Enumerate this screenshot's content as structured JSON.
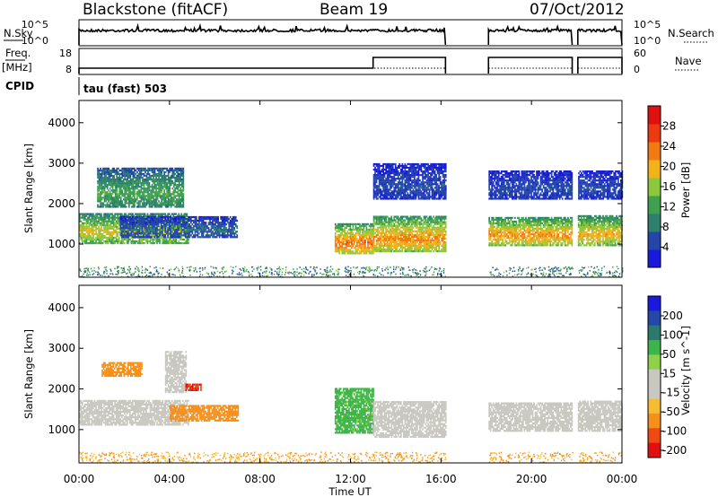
{
  "header": {
    "title": "Blackstone (fitACF)",
    "beam": "Beam 19",
    "date": "07/Oct/2012"
  },
  "params": {
    "nsky_label": "N.Sky",
    "nsearch_label": "N.Search",
    "freq_label": "Freq.",
    "freq_unit": "[MHz]",
    "nave_label": "Nave",
    "cpid_label": "CPID",
    "cpid_value": "tau (fast) 503",
    "noise_ticks": [
      "10^5",
      "10^0"
    ],
    "freq_ticks": [
      "18",
      "8"
    ],
    "nave_ticks": [
      "60",
      "0"
    ]
  },
  "colors": {
    "power_scale": [
      "#1a1adc",
      "#2346a8",
      "#2e7f6e",
      "#3fa050",
      "#8cc83c",
      "#f2b21a",
      "#f27a12",
      "#ee3a10",
      "#e01010"
    ],
    "velocity_scale": [
      "#e01010",
      "#f04a14",
      "#f5901c",
      "#f7bb32",
      "#c8c8c0",
      "#c8c8c0",
      "#8fd24a",
      "#3fb44a",
      "#2c7a6c",
      "#2348a8",
      "#1a1adc"
    ]
  },
  "chart_data": [
    {
      "type": "heatmap",
      "parameter": "Power",
      "ylabel": "Slant Range [km]",
      "ylim": [
        180,
        4550
      ],
      "yticks": [
        1000,
        2000,
        3000,
        4000
      ],
      "xlim_hours": [
        0,
        24
      ],
      "colorbar_label": "Power [dB]",
      "colorbar_range": [
        0,
        32
      ],
      "colorbar_ticks": [
        4,
        8,
        12,
        16,
        20,
        24,
        28
      ],
      "data_gaps_hours": [
        [
          16.2,
          18.1
        ],
        [
          21.8,
          22.05
        ]
      ],
      "echo_bands": [
        {
          "start_h": 0.0,
          "end_h": 4.8,
          "range_km": [
            1000,
            1750
          ],
          "level_db": 20
        },
        {
          "start_h": 0.8,
          "end_h": 4.6,
          "range_km": [
            1900,
            2850
          ],
          "level_db": 14
        },
        {
          "start_h": 1.8,
          "end_h": 7.0,
          "range_km": [
            1150,
            1650
          ],
          "level_db": 8
        },
        {
          "start_h": 11.3,
          "end_h": 13.0,
          "range_km": [
            750,
            1500
          ],
          "level_db": 26
        },
        {
          "start_h": 13.0,
          "end_h": 16.2,
          "range_km": [
            800,
            1700
          ],
          "level_db": 24
        },
        {
          "start_h": 18.1,
          "end_h": 21.8,
          "range_km": [
            950,
            1650
          ],
          "level_db": 24
        },
        {
          "start_h": 22.05,
          "end_h": 24.0,
          "range_km": [
            950,
            1700
          ],
          "level_db": 22
        },
        {
          "start_h": 13.0,
          "end_h": 16.2,
          "range_km": [
            2100,
            3000
          ],
          "level_db": 6
        },
        {
          "start_h": 18.1,
          "end_h": 24.0,
          "range_km": [
            2100,
            2800
          ],
          "level_db": 6
        }
      ]
    },
    {
      "type": "heatmap",
      "parameter": "Velocity",
      "ylabel": "Slant Range [km]",
      "xlabel": "Time UT",
      "ylim": [
        180,
        4550
      ],
      "yticks": [
        1000,
        2000,
        3000,
        4000
      ],
      "xlim_hours": [
        0,
        24
      ],
      "xticks": [
        "00:00",
        "04:00",
        "08:00",
        "12:00",
        "16:00",
        "20:00",
        "00:00"
      ],
      "colorbar_label": "Velocity [m s^-1]",
      "colorbar_ticks": [
        "200",
        "100",
        "50",
        "15",
        "-15",
        "-50",
        "-100",
        "-200"
      ],
      "data_gaps_hours": [
        [
          16.2,
          18.1
        ],
        [
          21.8,
          22.05
        ]
      ],
      "echo_bands": [
        {
          "start_h": 0.0,
          "end_h": 4.8,
          "range_km": [
            1100,
            1700
          ],
          "velocity": 0
        },
        {
          "start_h": 1.0,
          "end_h": 2.8,
          "range_km": [
            2300,
            2650
          ],
          "velocity": -60
        },
        {
          "start_h": 3.8,
          "end_h": 4.7,
          "range_km": [
            1900,
            2900
          ],
          "velocity": 0
        },
        {
          "start_h": 4.0,
          "end_h": 7.0,
          "range_km": [
            1200,
            1600
          ],
          "velocity": -60
        },
        {
          "start_h": 4.7,
          "end_h": 5.4,
          "range_km": [
            1950,
            2100
          ],
          "velocity": -150
        },
        {
          "start_h": 11.3,
          "end_h": 13.0,
          "range_km": [
            900,
            2000
          ],
          "velocity": 40
        },
        {
          "start_h": 13.0,
          "end_h": 16.2,
          "range_km": [
            800,
            1700
          ],
          "velocity": 0
        },
        {
          "start_h": 18.1,
          "end_h": 21.8,
          "range_km": [
            950,
            1650
          ],
          "velocity": 0
        },
        {
          "start_h": 22.05,
          "end_h": 24.0,
          "range_km": [
            950,
            1700
          ],
          "velocity": 0
        }
      ]
    }
  ]
}
